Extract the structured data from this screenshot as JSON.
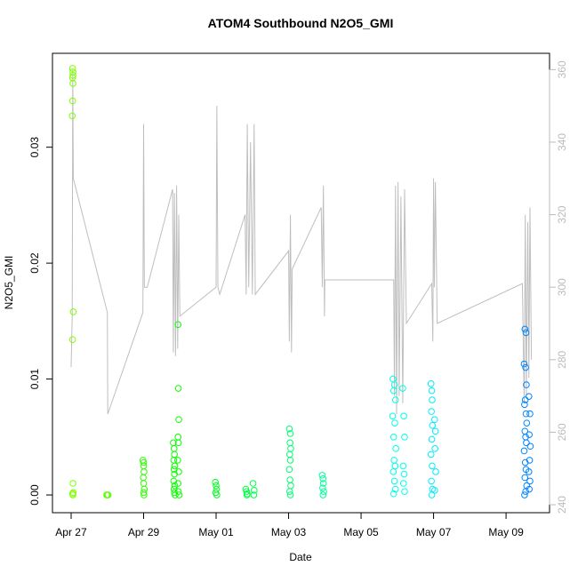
{
  "chart_data": {
    "type": "scatter",
    "title": "ATOM4 Southbound N2O5_GMI",
    "xlabel": "Date",
    "ylabel": "N2O5_GMI",
    "xlim": [
      -0.515,
      13.2
    ],
    "ylim": [
      -0.00153,
      0.0381
    ],
    "y2lim": [
      237.8,
      364.5
    ],
    "xticks": [
      {
        "value": 0,
        "label": "Apr 27"
      },
      {
        "value": 2,
        "label": "Apr 29"
      },
      {
        "value": 4,
        "label": "May 01"
      },
      {
        "value": 6,
        "label": "May 03"
      },
      {
        "value": 8,
        "label": "May 05"
      },
      {
        "value": 10,
        "label": "May 07"
      },
      {
        "value": 12,
        "label": "May 09"
      }
    ],
    "yticks": [
      {
        "value": 0,
        "label": "0.00"
      },
      {
        "value": 0.01,
        "label": "0.01"
      },
      {
        "value": 0.02,
        "label": "0.02"
      },
      {
        "value": 0.03,
        "label": "0.03"
      }
    ],
    "y2ticks": [
      240,
      260,
      280,
      300,
      320,
      340,
      360
    ],
    "color_stops": [
      "#80ff00",
      "#00ff00",
      "#00ff80",
      "#00ffff",
      "#0080ff"
    ],
    "series": [
      {
        "style": "points",
        "x": [
          0.04,
          0.05,
          0.05,
          0.04,
          0.05,
          0.04,
          0.03,
          0.06,
          0.04,
          0.05,
          0.04,
          0.05,
          0.06,
          0.98,
          1.0,
          1.02,
          1.98,
          2.0,
          2.0,
          2.01,
          1.99,
          2.0,
          2.02,
          2.0,
          2.01,
          2.82,
          2.84,
          2.85,
          2.83,
          2.86,
          2.84,
          2.85,
          2.83,
          2.86,
          2.84,
          2.85,
          2.87,
          2.95,
          2.96,
          2.97,
          2.95,
          2.96,
          2.94,
          2.97,
          2.95,
          2.96,
          2.98,
          3.98,
          4.0,
          4.01,
          3.99,
          4.02,
          4.82,
          4.84,
          4.86,
          4.85,
          5.02,
          5.05,
          5.04,
          6.02,
          6.05,
          6.04,
          6.06,
          6.03,
          6.05,
          6.02,
          6.04,
          6.06,
          6.03,
          6.05,
          6.93,
          6.95,
          6.96,
          6.94,
          6.97,
          6.95,
          8.88,
          8.92,
          8.9,
          8.95,
          8.87,
          8.93,
          8.9,
          8.96,
          8.91,
          8.94,
          8.89,
          8.92,
          8.95,
          8.9,
          9.15,
          9.18,
          9.2,
          9.16,
          9.19,
          9.17,
          9.2,
          9.93,
          9.95,
          9.96,
          9.94,
          9.97,
          9.95,
          9.93,
          9.96,
          9.94,
          9.97,
          9.95,
          10.03,
          10.05,
          10.04,
          10.06,
          10.03,
          12.52,
          12.55,
          12.5,
          12.54,
          12.56,
          12.53,
          12.51,
          12.55,
          12.57,
          12.52,
          12.54,
          12.56,
          12.5,
          12.53,
          12.55,
          12.52,
          12.57,
          12.54,
          12.51,
          12.63,
          12.66,
          12.64,
          12.67,
          12.65,
          12.63,
          12.66,
          12.64
        ],
        "values": [
          0.0368,
          0.0365,
          0.0362,
          0.036,
          0.0355,
          0.034,
          0.0327,
          0.0158,
          0.0134,
          0.001,
          0.0001,
          0,
          0.0002,
          0,
          0,
          0,
          0.003,
          0.0028,
          0.0025,
          0.002,
          0.0015,
          0.001,
          0.0005,
          0.0002,
          0,
          0.0045,
          0.004,
          0.0035,
          0.003,
          0.0025,
          0.0022,
          0.0018,
          0.0012,
          0.0008,
          0.0005,
          0.0002,
          0,
          0.0147,
          0.0092,
          0.0065,
          0.005,
          0.0045,
          0.003,
          0.002,
          0.001,
          0.0003,
          0,
          0.0011,
          0.0008,
          0.0005,
          0.0002,
          0,
          0.0005,
          0.0003,
          0.0001,
          0,
          0.001,
          0.0004,
          0,
          0.0057,
          0.0053,
          0.0045,
          0.004,
          0.0035,
          0.003,
          0.0022,
          0.0013,
          0.0008,
          0.0003,
          0,
          0.0017,
          0.0014,
          0.001,
          0.0006,
          0.0003,
          0,
          0.01,
          0.0095,
          0.009,
          0.0082,
          0.0068,
          0.0062,
          0.005,
          0.004,
          0.003,
          0.0025,
          0.002,
          0.0012,
          0.0005,
          0.0001,
          0.0092,
          0.0068,
          0.005,
          0.0025,
          0.0018,
          0.001,
          0.0003,
          0.0096,
          0.009,
          0.0082,
          0.0072,
          0.006,
          0.0048,
          0.0035,
          0.0025,
          0.0012,
          0.0005,
          0,
          0.0065,
          0.0055,
          0.004,
          0.002,
          0.0004,
          0.0143,
          0.014,
          0.0113,
          0.011,
          0.0095,
          0.0082,
          0.0078,
          0.007,
          0.0062,
          0.0055,
          0.005,
          0.0045,
          0.0038,
          0.0028,
          0.0022,
          0.0015,
          0.0008,
          0.0003,
          0,
          0.0085,
          0.007,
          0.0052,
          0.0042,
          0.003,
          0.002,
          0.0012,
          0.0005
        ]
      },
      {
        "style": "line",
        "axis": "y2",
        "color": "#bebebe",
        "x": [
          0.0,
          0.03,
          0.045,
          0.06,
          1.0,
          1.01,
          1.98,
          2.0,
          2.02,
          2.1,
          2.8,
          2.82,
          2.85,
          2.88,
          2.91,
          2.94,
          2.97,
          3.0,
          4.0,
          4.02,
          4.05,
          4.1,
          4.8,
          4.83,
          4.86,
          4.9,
          4.95,
          5.0,
          5.05,
          5.08,
          6.0,
          6.02,
          6.05,
          6.08,
          6.1,
          6.9,
          6.93,
          6.96,
          6.99,
          7.0,
          8.9,
          8.92,
          8.95,
          8.98,
          9.02,
          9.05,
          9.1,
          9.15,
          9.2,
          9.25,
          9.95,
          9.98,
          10.0,
          10.02,
          10.05,
          10.1,
          12.45,
          12.5,
          12.53,
          12.56,
          12.6,
          12.63,
          12.66,
          12.7
        ],
        "values": [
          278,
          292,
          360,
          330,
          293,
          265,
          293,
          345,
          300,
          300,
          327,
          282,
          326,
          281,
          328,
          283,
          320,
          292,
          300,
          350,
          300,
          298,
          320,
          298,
          345,
          300,
          340,
          298,
          345,
          298,
          310,
          285,
          320,
          282,
          305,
          322,
          300,
          328,
          292,
          302,
          302,
          270,
          328,
          265,
          329,
          270,
          325,
          268,
          327,
          290,
          301,
          285,
          330,
          300,
          329,
          290,
          301,
          268,
          320,
          270,
          318,
          275,
          322,
          280
        ]
      }
    ]
  }
}
